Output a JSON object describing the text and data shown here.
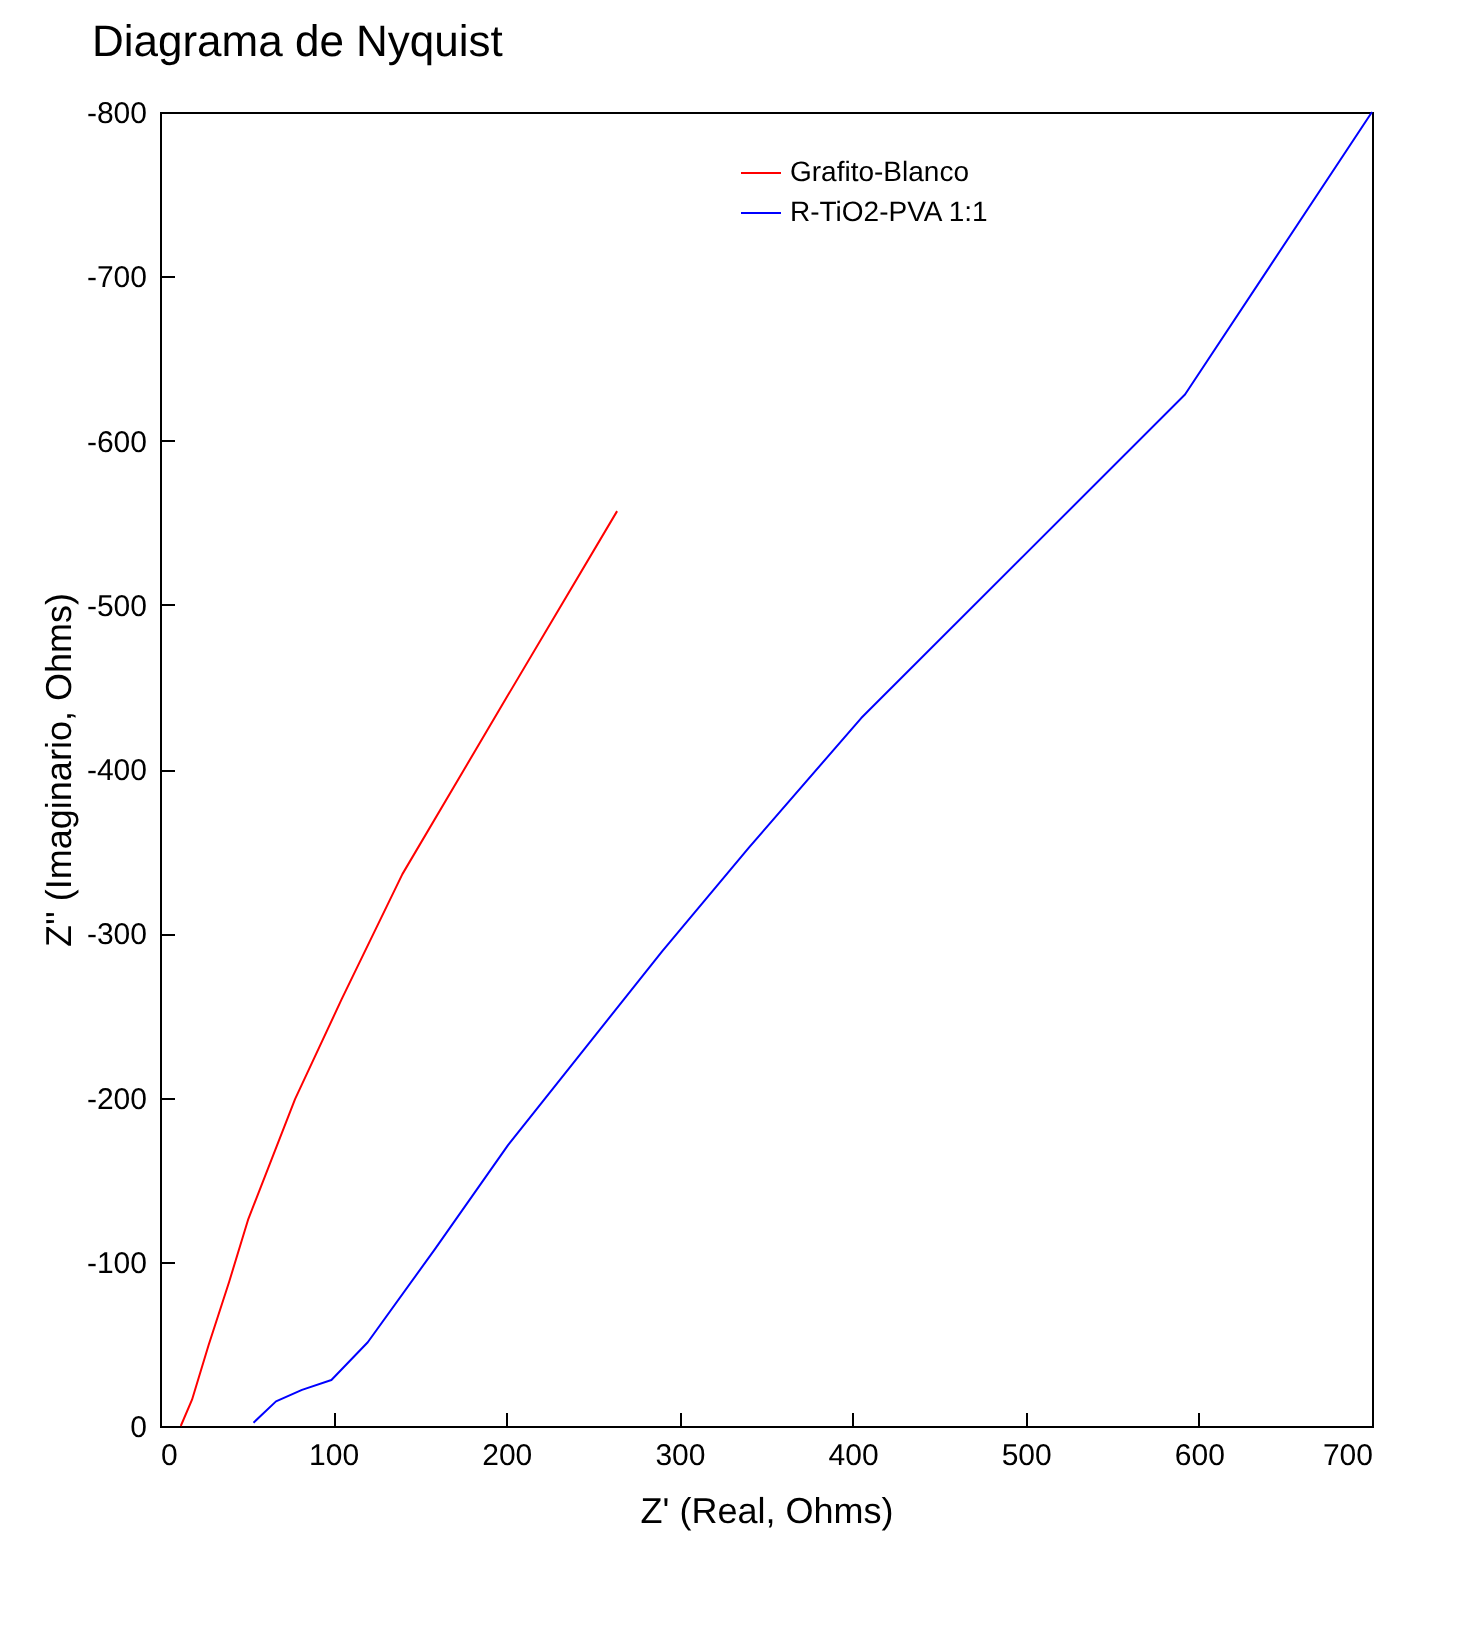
{
  "chart_data": {
    "type": "line",
    "title": "Diagrama de Nyquist",
    "xlabel": "Z' (Real, Ohms)",
    "ylabel": "Z'' (Imaginario, Ohms)",
    "xlim": [
      0,
      700
    ],
    "xticks": [
      0,
      100,
      200,
      300,
      400,
      500,
      600,
      700
    ],
    "ylim": [
      0,
      -800
    ],
    "yticks": [
      0,
      -100,
      -200,
      -300,
      -400,
      -500,
      -600,
      -700,
      -800
    ],
    "grid": false,
    "legend": "top right",
    "marker": "none",
    "line_style": "solid",
    "series": [
      {
        "name": "Grafito-Blanco",
        "color": "#ff0000",
        "x": [
          12,
          18.5,
          28,
          40,
          51,
          78,
          105,
          140,
          201,
          264
        ],
        "values": [
          0,
          -16,
          -49,
          -88,
          -126,
          -199,
          -260,
          -336,
          -445,
          -557
        ]
      },
      {
        "name": "R-TiO2-PVA 1:1",
        "color": "#0000ff",
        "x": [
          54,
          67,
          82,
          99,
          120,
          159,
          201,
          290,
          340,
          405,
          592,
          700
        ],
        "values": [
          -2,
          -15,
          -22,
          -28,
          -51,
          -108,
          -171,
          -289,
          -352,
          -431,
          -628,
          -800
        ]
      }
    ]
  }
}
